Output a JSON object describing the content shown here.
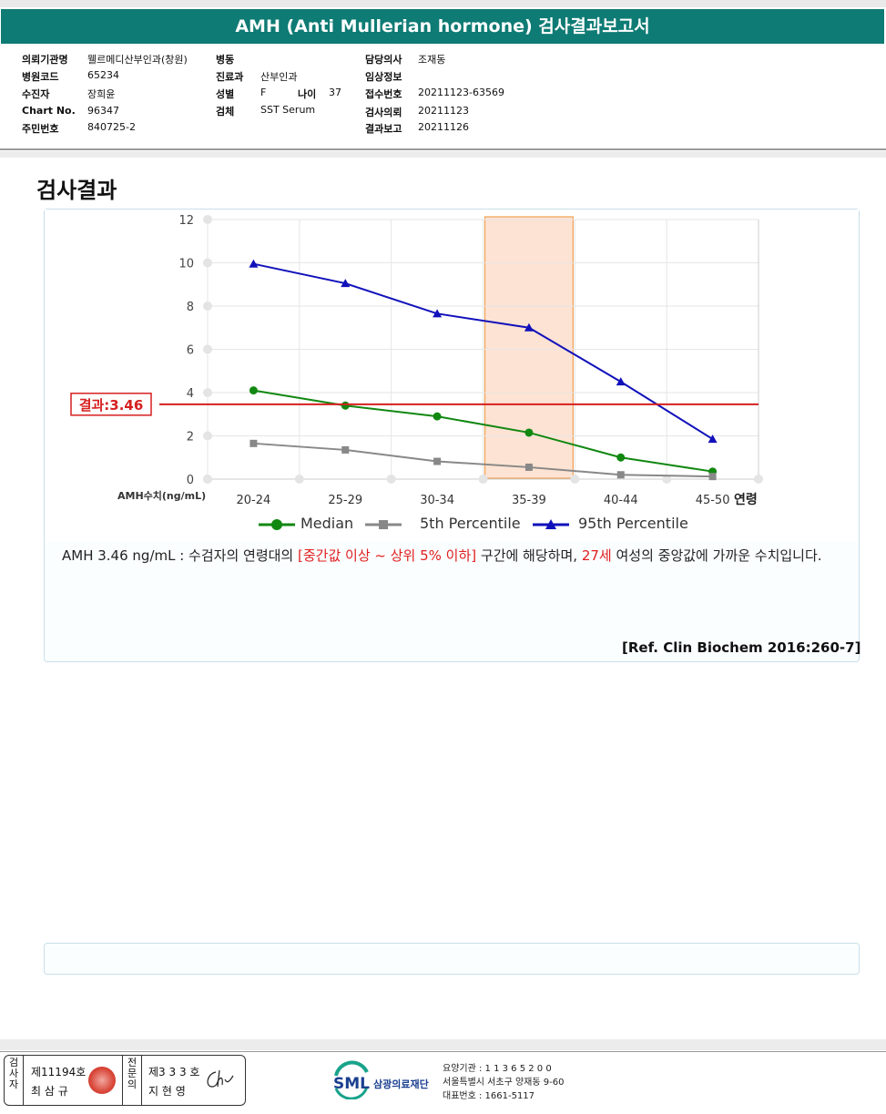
{
  "report": {
    "title": "AMH (Anti Mullerian hormone) 검사결과보고서"
  },
  "info": {
    "institution_label": "의뢰기관명",
    "institution": "웰르메디산부인과(창원)",
    "hospital_code_label": "병원코드",
    "hospital_code": "65234",
    "patient_label": "수진자",
    "patient": "장희윤",
    "chart_label": "Chart No.",
    "chart_no": "96347",
    "resident_label": "주민번호",
    "resident_no": "840725-2",
    "ward_label": "병동",
    "ward": "",
    "dept_label": "진료과",
    "dept": "산부인과",
    "sex_label": "성별",
    "sex": "F",
    "age_label": "나이",
    "age": "37",
    "specimen_label": "검체",
    "specimen": "SST Serum",
    "doctor_label": "담당의사",
    "doctor": "조재동",
    "clinical_label": "임상정보",
    "clinical": "",
    "receipt_label": "접수번호",
    "receipt": "20211123-63569",
    "request_label": "검사의뢰",
    "request_date": "20211123",
    "report_label": "결과보고",
    "report_date": "20211126"
  },
  "section_title": "검사결과",
  "chart_data": {
    "type": "line",
    "categories": [
      "20-24",
      "25-29",
      "30-34",
      "35-39",
      "40-44",
      "45-50"
    ],
    "xlabel": "연령",
    "ylabel": "AMH수치(ng/mL)",
    "ylim": [
      0,
      12
    ],
    "yticks": [
      0,
      2,
      4,
      6,
      8,
      10,
      12
    ],
    "grid": true,
    "legend_position": "bottom",
    "highlight_category": "35-39",
    "series": [
      {
        "name": "Median",
        "color": "#118811",
        "marker": "circle",
        "values": [
          4.1,
          3.4,
          2.9,
          2.15,
          1.0,
          0.35
        ]
      },
      {
        "name": "5th Percentile",
        "color": "#888888",
        "marker": "square",
        "values": [
          1.65,
          1.35,
          0.82,
          0.55,
          0.2,
          0.12
        ]
      },
      {
        "name": "95th Percentile",
        "color": "#1111bb",
        "marker": "triangle",
        "values": [
          9.95,
          9.05,
          7.65,
          7.0,
          4.5,
          1.85
        ]
      }
    ],
    "result_line": {
      "label": "결과:3.46",
      "value": 3.46,
      "color": "#d61f1f"
    }
  },
  "description": {
    "part1": "AMH  3.46 ng/mL : 수검자의 연령대의 ",
    "highlight1": "[중간값 이상 ~ 상위 5% 이하]",
    "part2": "  구간에 해당하며, ",
    "highlight2": "27세",
    "part3": " 여성의 중앙값에 가까운 수치입니다."
  },
  "reference": "[Ref. Clin Biochem 2016:260-7]",
  "footer": {
    "tester_label": "검사자",
    "tester_no": "제11194호",
    "tester_name": "최 삼 규",
    "specialist_label": "전문의",
    "specialist_no": "제3 3 3 호",
    "specialist_name": "지 현 영",
    "logo_text": "SML",
    "org_name": "삼광의료재단",
    "care_no": "요양기관 : 1 1 3 6 5 2 0 0",
    "address": "서울특별시 서초구 양재동 9-60",
    "phone": "대표번호 : 1661-5117"
  }
}
